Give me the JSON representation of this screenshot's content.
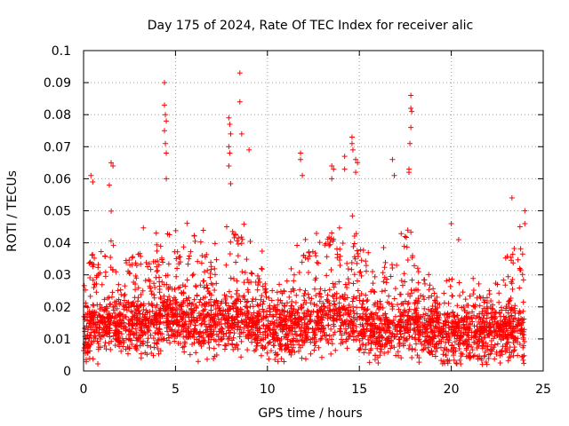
{
  "chart_data": {
    "type": "scatter",
    "title": "Day 175 of 2024, Rate Of TEC Index for receiver alic",
    "xlabel": "GPS time / hours",
    "ylabel": "ROTI / TECUs",
    "xlim": [
      0,
      25
    ],
    "ylim": [
      0,
      0.1
    ],
    "xticks": [
      0,
      5,
      10,
      15,
      20,
      25
    ],
    "xtick_labels": [
      "0",
      "5",
      "10",
      "15",
      "20",
      "25"
    ],
    "yticks": [
      0,
      0.01,
      0.02,
      0.03,
      0.04,
      0.05,
      0.06,
      0.07,
      0.08,
      0.09,
      0.1
    ],
    "ytick_labels": [
      "0",
      "0.01",
      "0.02",
      "0.03",
      "0.04",
      "0.05",
      "0.06",
      "0.07",
      "0.08",
      "0.09",
      "0.1"
    ],
    "grid": true,
    "marker": "plus",
    "color": "#ff0000",
    "series": [
      {
        "name": "ROTI",
        "x_range": [
          0,
          24
        ],
        "note": "dense scatter, approximate reconstruction",
        "profile_x": [
          0,
          0.5,
          1,
          1.5,
          2,
          3,
          4,
          4.5,
          5,
          6,
          7,
          8,
          9,
          10,
          11,
          12,
          13,
          13.5,
          14,
          15,
          16,
          17,
          17.8,
          18,
          19,
          20,
          21,
          22,
          23,
          23.5,
          24
        ],
        "profile_median": [
          0.011,
          0.013,
          0.014,
          0.015,
          0.014,
          0.014,
          0.015,
          0.017,
          0.016,
          0.015,
          0.014,
          0.016,
          0.015,
          0.013,
          0.013,
          0.014,
          0.016,
          0.017,
          0.016,
          0.014,
          0.012,
          0.013,
          0.015,
          0.014,
          0.012,
          0.011,
          0.012,
          0.012,
          0.012,
          0.013,
          0.012
        ],
        "profile_upper": [
          0.035,
          0.045,
          0.04,
          0.05,
          0.04,
          0.045,
          0.045,
          0.06,
          0.045,
          0.05,
          0.04,
          0.06,
          0.045,
          0.035,
          0.03,
          0.05,
          0.045,
          0.055,
          0.045,
          0.055,
          0.035,
          0.05,
          0.055,
          0.04,
          0.035,
          0.035,
          0.03,
          0.03,
          0.04,
          0.05,
          0.045
        ],
        "outliers": [
          {
            "x": 0.4,
            "y": 0.061
          },
          {
            "x": 0.5,
            "y": 0.059
          },
          {
            "x": 1.5,
            "y": 0.065
          },
          {
            "x": 1.6,
            "y": 0.064
          },
          {
            "x": 1.4,
            "y": 0.058
          },
          {
            "x": 4.4,
            "y": 0.09
          },
          {
            "x": 4.4,
            "y": 0.083
          },
          {
            "x": 4.45,
            "y": 0.08
          },
          {
            "x": 4.5,
            "y": 0.078
          },
          {
            "x": 4.4,
            "y": 0.075
          },
          {
            "x": 4.45,
            "y": 0.071
          },
          {
            "x": 4.5,
            "y": 0.068
          },
          {
            "x": 4.5,
            "y": 0.06
          },
          {
            "x": 7.9,
            "y": 0.079
          },
          {
            "x": 7.95,
            "y": 0.077
          },
          {
            "x": 8.0,
            "y": 0.074
          },
          {
            "x": 7.9,
            "y": 0.07
          },
          {
            "x": 7.95,
            "y": 0.068
          },
          {
            "x": 7.9,
            "y": 0.064
          },
          {
            "x": 8.5,
            "y": 0.093
          },
          {
            "x": 8.5,
            "y": 0.084
          },
          {
            "x": 8.6,
            "y": 0.074
          },
          {
            "x": 9.0,
            "y": 0.069
          },
          {
            "x": 11.8,
            "y": 0.068
          },
          {
            "x": 11.8,
            "y": 0.066
          },
          {
            "x": 11.9,
            "y": 0.061
          },
          {
            "x": 13.5,
            "y": 0.064
          },
          {
            "x": 13.6,
            "y": 0.063
          },
          {
            "x": 13.5,
            "y": 0.06
          },
          {
            "x": 14.2,
            "y": 0.067
          },
          {
            "x": 14.2,
            "y": 0.063
          },
          {
            "x": 14.6,
            "y": 0.073
          },
          {
            "x": 14.6,
            "y": 0.071
          },
          {
            "x": 14.65,
            "y": 0.069
          },
          {
            "x": 14.8,
            "y": 0.066
          },
          {
            "x": 14.9,
            "y": 0.065
          },
          {
            "x": 14.8,
            "y": 0.062
          },
          {
            "x": 16.8,
            "y": 0.066
          },
          {
            "x": 16.9,
            "y": 0.061
          },
          {
            "x": 17.8,
            "y": 0.086
          },
          {
            "x": 17.8,
            "y": 0.082
          },
          {
            "x": 17.85,
            "y": 0.081
          },
          {
            "x": 17.8,
            "y": 0.076
          },
          {
            "x": 17.75,
            "y": 0.071
          },
          {
            "x": 17.7,
            "y": 0.063
          },
          {
            "x": 17.7,
            "y": 0.062
          },
          {
            "x": 20.0,
            "y": 0.046
          },
          {
            "x": 20.4,
            "y": 0.041
          },
          {
            "x": 23.3,
            "y": 0.054
          },
          {
            "x": 24.0,
            "y": 0.05
          },
          {
            "x": 24.0,
            "y": 0.046
          }
        ]
      }
    ]
  }
}
